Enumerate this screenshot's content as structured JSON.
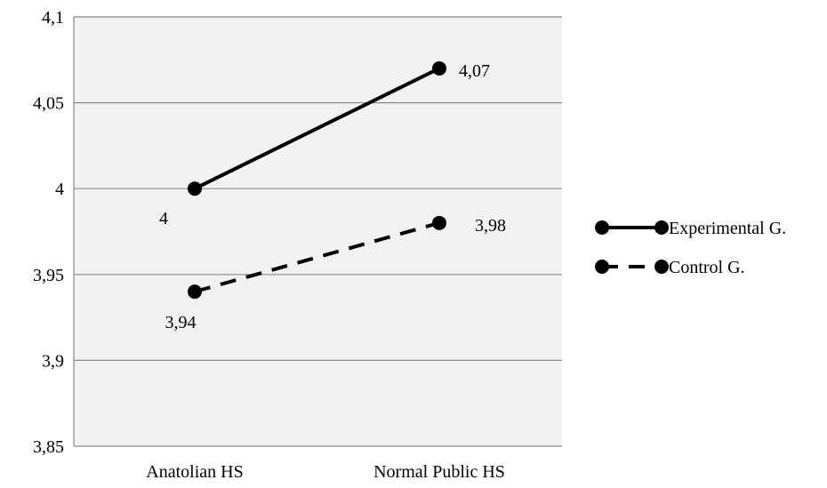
{
  "chart_data": {
    "type": "line",
    "categories": [
      "Anatolian HS",
      "Normal Public HS"
    ],
    "ylim": [
      3.85,
      4.1
    ],
    "yticks": [
      3.85,
      3.9,
      3.95,
      4,
      4.05,
      4.1
    ],
    "ytick_labels": [
      "3,85",
      "3,9",
      "3,95",
      "4",
      "4,05",
      "4,1"
    ],
    "grid": true,
    "plot_background": "#f2f2f2",
    "legend_position": "right",
    "series": [
      {
        "name": "Experimental G.",
        "values": [
          4.0,
          4.07
        ],
        "labels": [
          "4",
          "4,07"
        ],
        "line_style": "solid",
        "color": "#000000"
      },
      {
        "name": "Control G.",
        "values": [
          3.94,
          3.98
        ],
        "labels": [
          "3,94",
          "3,98"
        ],
        "line_style": "dashed",
        "color": "#000000"
      }
    ]
  }
}
